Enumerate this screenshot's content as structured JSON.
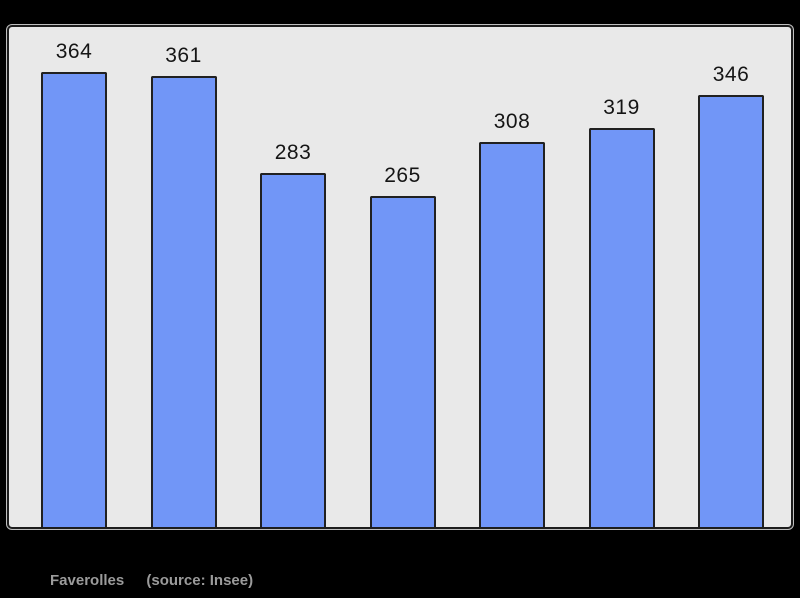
{
  "page": {
    "background_color": "#000000"
  },
  "chart_data": {
    "type": "bar",
    "values": [
      364,
      361,
      283,
      265,
      308,
      319,
      346
    ],
    "data_labels": [
      "364",
      "361",
      "283",
      "265",
      "308",
      "319",
      "346"
    ],
    "title": "",
    "xlabel": "",
    "ylabel": "",
    "ylim": [
      0,
      400
    ],
    "grid": false,
    "legend": null,
    "bar_fill_color": "#7196f7",
    "bar_border_color": "#212121",
    "panel_fill_color": "#e9e9e9",
    "panel_border_color": "#1d1d1d",
    "value_label_color": "#151515"
  },
  "caption": {
    "place": "Faverolles",
    "source": "(source: Insee)"
  }
}
